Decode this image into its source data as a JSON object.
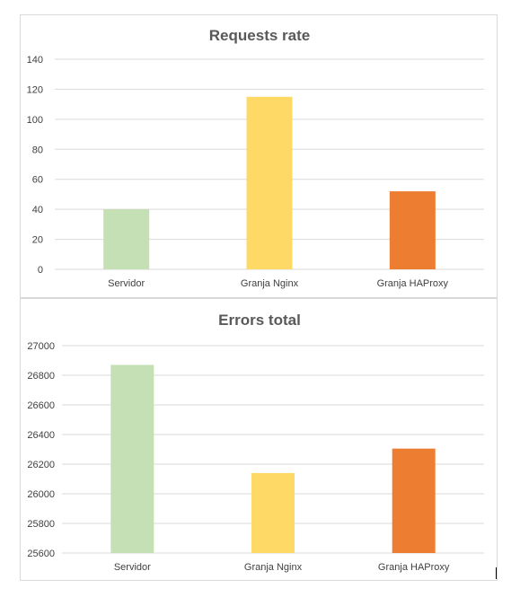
{
  "chart_data": [
    {
      "type": "bar",
      "title": "Requests rate",
      "categories": [
        "Servidor",
        "Granja Nginx",
        "Granja HAProxy"
      ],
      "values": [
        40,
        115,
        52
      ],
      "colors": [
        "#c5e0b4",
        "#ffd966",
        "#ed7d31"
      ],
      "ylim": [
        0,
        140
      ],
      "yticks": [
        0,
        20,
        40,
        60,
        80,
        100,
        120,
        140
      ],
      "grid": true,
      "legend": "none",
      "xlabel": "",
      "ylabel": ""
    },
    {
      "type": "bar",
      "title": "Errors total",
      "categories": [
        "Servidor",
        "Granja Nginx",
        "Granja HAProxy"
      ],
      "values": [
        26870,
        26140,
        26305
      ],
      "colors": [
        "#c5e0b4",
        "#ffd966",
        "#ed7d31"
      ],
      "ylim": [
        25600,
        27000
      ],
      "yticks": [
        25600,
        25800,
        26000,
        26200,
        26400,
        26600,
        26800,
        27000
      ],
      "grid": true,
      "legend": "none",
      "xlabel": "",
      "ylabel": ""
    }
  ]
}
